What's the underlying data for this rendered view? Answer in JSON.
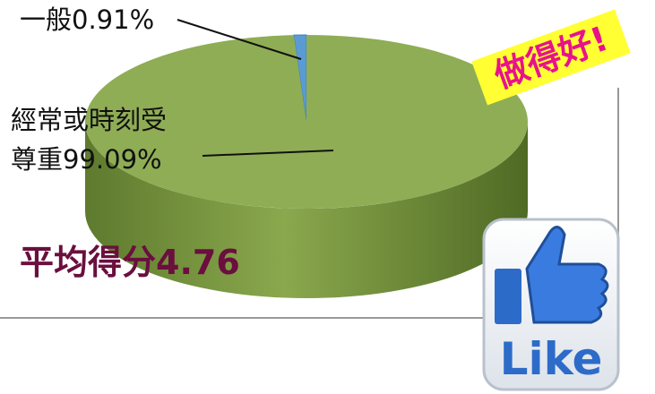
{
  "chart_data": {
    "type": "pie",
    "categories": [
      "一般",
      "經常或時刻受尊重"
    ],
    "values": [
      0.91,
      99.09
    ],
    "value_labels": [
      "0.91%",
      "99.09%"
    ],
    "colors": [
      "#5b9bd5",
      "#8fad55"
    ],
    "annotations": [
      "平均得分4.76",
      "做得好!"
    ]
  },
  "icon": {
    "label": "Like"
  }
}
